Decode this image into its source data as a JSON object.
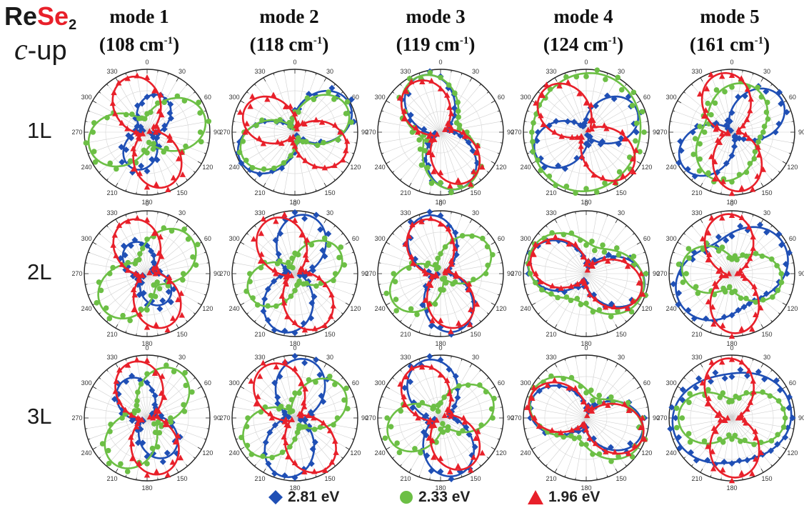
{
  "header": {
    "formula_main": "Re",
    "formula_highlight": "Se",
    "formula_sub": "2",
    "orientation_symbol": "c",
    "orientation_suffix": "-up"
  },
  "colors": {
    "blue": "#1f4fb5",
    "green": "#6cbf45",
    "red": "#e8202a",
    "highlight": "#e8202a"
  },
  "modes": [
    {
      "title": "mode 1",
      "freq": "(108 cm",
      "unit_sup": "-1",
      "close": ")"
    },
    {
      "title": "mode 2",
      "freq": "(118 cm",
      "unit_sup": "-1",
      "close": ")"
    },
    {
      "title": "mode 3",
      "freq": "(119 cm",
      "unit_sup": "-1",
      "close": ")"
    },
    {
      "title": "mode 4",
      "freq": "(124 cm",
      "unit_sup": "-1",
      "close": ")"
    },
    {
      "title": "mode 5",
      "freq": "(161 cm",
      "unit_sup": "-1",
      "close": ")"
    }
  ],
  "rows": [
    "1L",
    "2L",
    "3L"
  ],
  "legend": [
    {
      "label": "2.81 eV",
      "series": "blue",
      "marker": "diamond"
    },
    {
      "label": "2.33 eV",
      "series": "green",
      "marker": "circle"
    },
    {
      "label": "1.96 eV",
      "series": "red",
      "marker": "triangle"
    }
  ],
  "chart_data": {
    "type": "polar",
    "angular_axis": {
      "ticks_deg": [
        0,
        30,
        60,
        90,
        120,
        150,
        180,
        210,
        240,
        270,
        300,
        330
      ],
      "direction": "clockwise",
      "zero": "top"
    },
    "radial_max": 1,
    "grid": true,
    "legend_position": "bottom",
    "model": "r = a*cos^2(theta - phi) + b*sin^2(theta - phi) (two-lobe fit)",
    "panels": [
      {
        "mode": "mode 1",
        "layer": "1L",
        "series": [
          {
            "name": "2.81 eV",
            "phi": 20,
            "a": 0.62,
            "b": 0.12
          },
          {
            "name": "2.33 eV",
            "phi": 75,
            "a": 0.95,
            "b": 0.22
          },
          {
            "name": "1.96 eV",
            "phi": 160,
            "a": 0.92,
            "b": 0.1
          }
        ]
      },
      {
        "mode": "mode 2",
        "layer": "1L",
        "series": [
          {
            "name": "2.81 eV",
            "phi": 62,
            "a": 0.98,
            "b": 0.1
          },
          {
            "name": "2.33 eV",
            "phi": 65,
            "a": 0.92,
            "b": 0.12
          },
          {
            "name": "1.96 eV",
            "phi": 115,
            "a": 0.88,
            "b": 0.1
          }
        ]
      },
      {
        "mode": "mode 3",
        "layer": "1L",
        "series": [
          {
            "name": "2.81 eV",
            "phi": 160,
            "a": 0.95,
            "b": 0.12
          },
          {
            "name": "2.33 eV",
            "phi": 158,
            "a": 0.95,
            "b": 0.3
          },
          {
            "name": "1.96 eV",
            "phi": 150,
            "a": 0.9,
            "b": 0.12
          }
        ]
      },
      {
        "mode": "mode 4",
        "layer": "1L",
        "series": [
          {
            "name": "2.81 eV",
            "phi": 65,
            "a": 0.88,
            "b": 0.1
          },
          {
            "name": "2.33 eV",
            "phi": 20,
            "a": 0.95,
            "b": 0.85
          },
          {
            "name": "1.96 eV",
            "phi": 135,
            "a": 0.95,
            "b": 0.1
          }
        ]
      },
      {
        "mode": "mode 5",
        "layer": "1L",
        "series": [
          {
            "name": "2.81 eV",
            "phi": 55,
            "a": 0.95,
            "b": 0.08
          },
          {
            "name": "2.33 eV",
            "phi": 20,
            "a": 0.8,
            "b": 0.45
          },
          {
            "name": "1.96 eV",
            "phi": 170,
            "a": 0.95,
            "b": 0.1
          }
        ]
      },
      {
        "mode": "mode 1",
        "layer": "2L",
        "series": [
          {
            "name": "2.81 eV",
            "phi": 150,
            "a": 0.55,
            "b": 0.12
          },
          {
            "name": "2.33 eV",
            "phi": 50,
            "a": 0.9,
            "b": 0.25
          },
          {
            "name": "1.96 eV",
            "phi": 160,
            "a": 0.9,
            "b": 0.1
          }
        ]
      },
      {
        "mode": "mode 2",
        "layer": "2L",
        "series": [
          {
            "name": "2.81 eV",
            "phi": 12,
            "a": 0.95,
            "b": 0.12
          },
          {
            "name": "2.33 eV",
            "phi": 65,
            "a": 0.8,
            "b": 0.15
          },
          {
            "name": "1.96 eV",
            "phi": 155,
            "a": 0.95,
            "b": 0.1
          }
        ]
      },
      {
        "mode": "mode 3",
        "layer": "2L",
        "series": [
          {
            "name": "2.81 eV",
            "phi": 165,
            "a": 0.95,
            "b": 0.1
          },
          {
            "name": "2.33 eV",
            "phi": 60,
            "a": 0.88,
            "b": 0.12
          },
          {
            "name": "1.96 eV",
            "phi": 160,
            "a": 0.9,
            "b": 0.1
          }
        ]
      },
      {
        "mode": "mode 4",
        "layer": "2L",
        "series": [
          {
            "name": "2.81 eV",
            "phi": 105,
            "a": 0.95,
            "b": 0.15
          },
          {
            "name": "2.33 eV",
            "phi": 110,
            "a": 0.95,
            "b": 0.45
          },
          {
            "name": "1.96 eV",
            "phi": 110,
            "a": 0.92,
            "b": 0.12
          }
        ]
      },
      {
        "mode": "mode 5",
        "layer": "2L",
        "series": [
          {
            "name": "2.81 eV",
            "phi": 60,
            "a": 0.95,
            "b": 0.55
          },
          {
            "name": "2.33 eV",
            "phi": 100,
            "a": 0.8,
            "b": 0.25
          },
          {
            "name": "1.96 eV",
            "phi": 175,
            "a": 0.95,
            "b": 0.1
          }
        ]
      },
      {
        "mode": "mode 1",
        "layer": "3L",
        "series": [
          {
            "name": "2.81 eV",
            "phi": 150,
            "a": 0.7,
            "b": 0.12
          },
          {
            "name": "2.33 eV",
            "phi": 35,
            "a": 0.9,
            "b": 0.2
          },
          {
            "name": "1.96 eV",
            "phi": 165,
            "a": 0.92,
            "b": 0.1
          }
        ]
      },
      {
        "mode": "mode 2",
        "layer": "3L",
        "series": [
          {
            "name": "2.81 eV",
            "phi": 10,
            "a": 0.95,
            "b": 0.12
          },
          {
            "name": "2.33 eV",
            "phi": 60,
            "a": 0.9,
            "b": 0.15
          },
          {
            "name": "1.96 eV",
            "phi": 150,
            "a": 0.95,
            "b": 0.1
          }
        ]
      },
      {
        "mode": "mode 3",
        "layer": "3L",
        "series": [
          {
            "name": "2.81 eV",
            "phi": 165,
            "a": 0.95,
            "b": 0.15
          },
          {
            "name": "2.33 eV",
            "phi": 70,
            "a": 0.88,
            "b": 0.15
          },
          {
            "name": "1.96 eV",
            "phi": 150,
            "a": 0.9,
            "b": 0.12
          }
        ]
      },
      {
        "mode": "mode 4",
        "layer": "3L",
        "series": [
          {
            "name": "2.81 eV",
            "phi": 105,
            "a": 0.92,
            "b": 0.15
          },
          {
            "name": "2.33 eV",
            "phi": 115,
            "a": 0.95,
            "b": 0.35
          },
          {
            "name": "1.96 eV",
            "phi": 110,
            "a": 0.95,
            "b": 0.1
          }
        ]
      },
      {
        "mode": "mode 5",
        "layer": "3L",
        "series": [
          {
            "name": "2.81 eV",
            "phi": 80,
            "a": 0.95,
            "b": 0.7
          },
          {
            "name": "2.33 eV",
            "phi": 90,
            "a": 0.85,
            "b": 0.3
          },
          {
            "name": "1.96 eV",
            "phi": 175,
            "a": 0.95,
            "b": 0.12
          }
        ]
      }
    ]
  }
}
